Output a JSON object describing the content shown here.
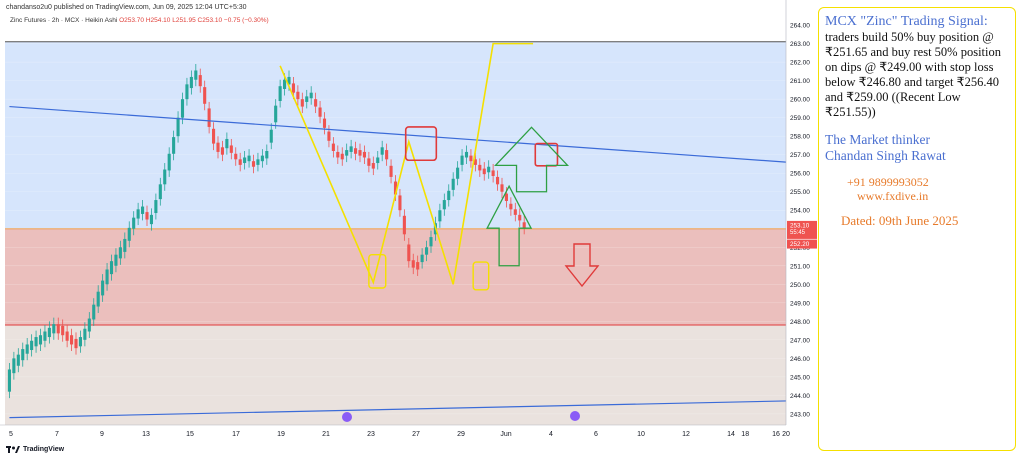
{
  "header": {
    "published": "chandanso2u0 published on TradingView.com, Jun 09, 2025 12:04 UTC+5:30",
    "symbol": "Zinc Futures · 2h · MCX · Heikin Ashi",
    "ohlc": "O253.70 H254.10 L251.95 C253.10 −0.75 (−0.30%)",
    "footer_brand": "TradingView"
  },
  "chart_data": {
    "type": "candlestick",
    "chart_style": "Heikin Ashi",
    "title": "",
    "xlabel": "",
    "ylabel": "",
    "ylim": [
      242.4,
      264.6
    ],
    "y_ticks": [
      243.0,
      244.0,
      245.0,
      246.0,
      247.0,
      248.0,
      249.0,
      250.0,
      251.0,
      252.0,
      253.0,
      254.0,
      255.0,
      256.0,
      257.0,
      258.0,
      259.0,
      260.0,
      261.0,
      262.0,
      263.0,
      264.0
    ],
    "x_ticks": [
      "5",
      "7",
      "9",
      "13",
      "15",
      "17",
      "19",
      "21",
      "23",
      "27",
      "29",
      "Jun",
      "4",
      "6",
      "10",
      "12",
      "14",
      "16",
      "18",
      "20"
    ],
    "price_labels": {
      "current": "253.10",
      "countdown": "55:45",
      "low": "252.20"
    },
    "zones": [
      {
        "from": 253.0,
        "to": 263.1,
        "color": "#cfe0fb"
      },
      {
        "from": 247.8,
        "to": 253.0,
        "color": "#e8b4b2"
      },
      {
        "from": 242.4,
        "to": 247.8,
        "color": "#e6ddd8"
      }
    ],
    "hlines": [
      {
        "y": 263.1,
        "color": "#555555"
      },
      {
        "y": 253.0,
        "color": "#f0902a"
      },
      {
        "y": 247.8,
        "color": "#e03a3a"
      }
    ],
    "trendlines": [
      {
        "x": [
          0,
          175
        ],
        "y": [
          259.6,
          256.6
        ],
        "color": "#3b6bd8"
      },
      {
        "x": [
          0,
          175
        ],
        "y": [
          242.8,
          243.7
        ],
        "color": "#3b6bd8"
      }
    ],
    "pattern_path": {
      "x": [
        61,
        82,
        90,
        100,
        109,
        114,
        118
      ],
      "y": [
        261.8,
        250.1,
        257.7,
        250.0,
        263.0,
        263.0,
        263.0
      ],
      "color": "#f4e000"
    },
    "candles": {
      "x_start": 0,
      "x_step": 1,
      "mid": [
        244.8,
        245.6,
        245.9,
        246.2,
        246.5,
        246.7,
        246.9,
        247.0,
        247.2,
        247.4,
        247.6,
        247.6,
        247.5,
        247.2,
        247.0,
        246.8,
        246.9,
        247.3,
        247.8,
        248.5,
        249.2,
        249.8,
        250.4,
        250.9,
        251.3,
        251.7,
        252.1,
        252.7,
        253.3,
        253.8,
        254.0,
        253.7,
        253.5,
        254.2,
        255.0,
        255.8,
        256.6,
        257.5,
        258.5,
        259.5,
        260.4,
        260.9,
        261.3,
        261.0,
        260.2,
        259.0,
        258.0,
        257.4,
        257.2,
        257.6,
        257.3,
        256.9,
        256.6,
        256.7,
        256.8,
        256.5,
        256.6,
        256.8,
        257.0,
        258.0,
        259.2,
        260.3,
        260.8,
        261.0,
        260.6,
        260.2,
        259.8,
        260.0,
        260.2,
        259.8,
        259.3,
        258.7,
        258.0,
        257.4,
        257.0,
        256.9,
        257.1,
        257.3,
        257.2,
        257.1,
        257.0,
        256.6,
        256.4,
        256.7,
        257.2,
        257.0,
        256.1,
        255.2,
        254.4,
        253.2,
        251.7,
        251.1,
        251.0,
        251.4,
        251.8,
        252.3,
        253.0,
        253.7,
        254.3,
        254.8,
        255.4,
        256.0,
        256.7,
        257.0,
        256.8,
        256.6,
        256.3,
        256.1,
        256.2,
        256.0,
        255.6,
        255.2,
        254.7,
        254.2,
        253.9,
        253.6,
        253.2
      ],
      "body": [
        1.2,
        0.8,
        0.6,
        0.6,
        0.5,
        0.5,
        0.5,
        0.5,
        0.5,
        0.5,
        0.5,
        0.5,
        0.5,
        0.5,
        0.5,
        0.5,
        0.5,
        0.6,
        0.7,
        0.8,
        0.8,
        0.8,
        0.8,
        0.7,
        0.6,
        0.6,
        0.7,
        0.7,
        0.6,
        0.5,
        0.4,
        0.4,
        0.5,
        0.7,
        0.8,
        0.8,
        0.9,
        0.9,
        1.0,
        1.0,
        0.8,
        0.6,
        0.5,
        0.6,
        0.9,
        1.0,
        0.8,
        0.5,
        0.4,
        0.5,
        0.4,
        0.3,
        0.3,
        0.3,
        0.3,
        0.3,
        0.3,
        0.3,
        0.4,
        0.7,
        0.9,
        0.8,
        0.5,
        0.4,
        0.5,
        0.4,
        0.4,
        0.3,
        0.3,
        0.4,
        0.5,
        0.5,
        0.5,
        0.4,
        0.3,
        0.3,
        0.3,
        0.3,
        0.3,
        0.3,
        0.3,
        0.4,
        0.3,
        0.3,
        0.4,
        0.5,
        0.6,
        0.7,
        0.8,
        1.0,
        0.9,
        0.4,
        0.4,
        0.4,
        0.4,
        0.5,
        0.6,
        0.6,
        0.5,
        0.5,
        0.6,
        0.6,
        0.5,
        0.3,
        0.3,
        0.3,
        0.3,
        0.3,
        0.3,
        0.3,
        0.4,
        0.4,
        0.4,
        0.3,
        0.3,
        0.3,
        0.3
      ],
      "dir": [
        1,
        1,
        1,
        1,
        1,
        1,
        1,
        1,
        1,
        1,
        1,
        0,
        0,
        0,
        0,
        0,
        1,
        1,
        1,
        1,
        1,
        1,
        1,
        1,
        1,
        1,
        1,
        1,
        1,
        1,
        1,
        0,
        1,
        1,
        1,
        1,
        1,
        1,
        1,
        1,
        1,
        1,
        1,
        0,
        0,
        0,
        0,
        0,
        0,
        1,
        0,
        0,
        0,
        1,
        1,
        0,
        1,
        1,
        1,
        1,
        1,
        1,
        1,
        1,
        0,
        0,
        0,
        1,
        1,
        0,
        0,
        0,
        0,
        0,
        0,
        0,
        1,
        1,
        0,
        0,
        0,
        0,
        0,
        1,
        1,
        0,
        0,
        0,
        0,
        0,
        0,
        0,
        0,
        1,
        1,
        1,
        1,
        1,
        1,
        1,
        1,
        1,
        1,
        1,
        0,
        0,
        0,
        0,
        1,
        0,
        0,
        0,
        0,
        0,
        0,
        0,
        0
      ],
      "up_color": "#26a69a",
      "down_color": "#ef5350"
    }
  },
  "panel": {
    "title": "MCX \"Zinc\" Trading Signal:",
    "body": "traders build 50% buy position @ ₹251.65 and buy rest 50% position on dips @ ₹249.00 with stop loss below ₹246.80 and target ₹256.40 and ₹259.00 ((Recent Low ₹251.55))",
    "author_line1": "The Market thinker",
    "author_line2": "Chandan Singh Rawat",
    "phone": "+91 9899993052",
    "website": "www.fxdive.in",
    "dated": "Dated: 09th June 2025"
  },
  "annotations": {
    "box_red": "#e03a3a",
    "box_yellow": "#f4e000",
    "arrow_green": "#2ea043",
    "arrow_red": "#e03a3a"
  }
}
